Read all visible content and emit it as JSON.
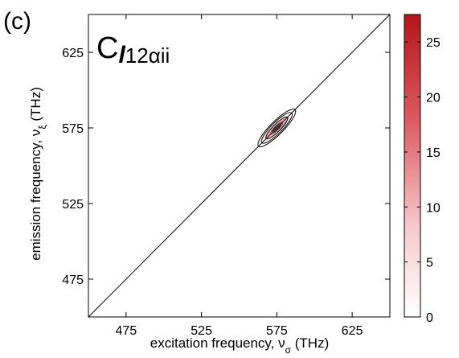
{
  "panel_label": "(c)",
  "chart_data": {
    "type": "heatmap",
    "annotation": {
      "base": "C",
      "italic": "l",
      "sub": "12αii"
    },
    "xlabel": "excitation frequency, ν",
    "xlabel_sub": "σ",
    "xlabel_unit": " (THz)",
    "ylabel": "emission frequency, ν",
    "ylabel_sub": "ξ",
    "ylabel_unit": " (THz)",
    "xlim": [
      450,
      650
    ],
    "ylim": [
      450,
      650
    ],
    "xticks": [
      475,
      525,
      575,
      625
    ],
    "yticks": [
      475,
      525,
      575,
      625
    ],
    "diagonal": true,
    "peak": {
      "center": [
        575,
        575
      ],
      "max": 27,
      "major_halfwidth": 14,
      "minor_halfwidth": 5
    },
    "contour_levels": [
      0.25,
      0.5,
      0.75
    ],
    "colorbar": {
      "min": 0,
      "max": 27.5,
      "ticks": [
        0,
        5,
        10,
        15,
        20,
        25
      ],
      "color_low": "#ffffff",
      "color_high": "#b3151b"
    }
  }
}
